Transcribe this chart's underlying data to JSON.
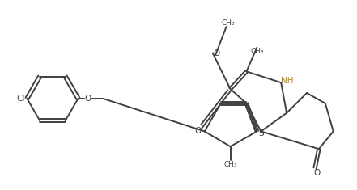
{
  "bg_color": "#ffffff",
  "line_color": "#404040",
  "nh_color": "#b8860b",
  "figsize": [
    4.41,
    2.35
  ],
  "dpi": 100,
  "lw": 1.4,
  "xlim": [
    0,
    10
  ],
  "ylim": [
    0,
    5.3
  ]
}
